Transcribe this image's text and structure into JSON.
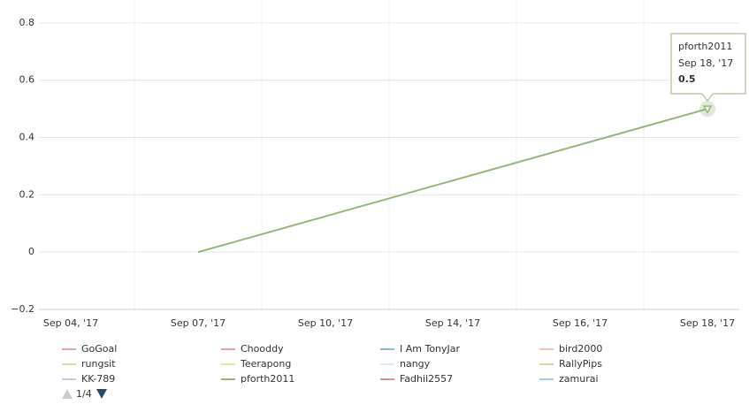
{
  "chart_data": {
    "type": "line",
    "categories": [
      "Sep 04, '17",
      "Sep 07, '17",
      "Sep 10, '17",
      "Sep 14, '17",
      "Sep 16, '17",
      "Sep 18, '17"
    ],
    "ylim": [
      -0.2,
      0.88
    ],
    "yticks": [
      {
        "value": -0.2,
        "label": "−0.2"
      },
      0,
      0.2,
      0.4,
      0.6,
      0.8
    ],
    "grid": true,
    "series": [
      {
        "name": "GoGoal",
        "color": "#d9a3bf"
      },
      {
        "name": "Chooddy",
        "color": "#e8a4a4"
      },
      {
        "name": "I Am TonyJar",
        "color": "#8fb9c9"
      },
      {
        "name": "bird2000",
        "color": "#f2c4b4"
      },
      {
        "name": "rungsit",
        "color": "#d6df9e"
      },
      {
        "name": "Teerapong",
        "color": "#ebe69c"
      },
      {
        "name": "nangy",
        "color": "#dcebf6"
      },
      {
        "name": "RallyPips",
        "color": "#e2d68c"
      },
      {
        "name": "KK-789",
        "color": "#c9c9e0"
      },
      {
        "name": "pforth2011",
        "color": "#97b57c",
        "x": [
          "Sep 07, '17",
          "Sep 18, '17"
        ],
        "values": [
          0,
          0.5
        ]
      },
      {
        "name": "Fadhil2557",
        "color": "#d88f8f"
      },
      {
        "name": "zamurai",
        "color": "#9fcbe8"
      }
    ],
    "legend": {
      "position": "bottom",
      "page": "1/4"
    }
  }
}
